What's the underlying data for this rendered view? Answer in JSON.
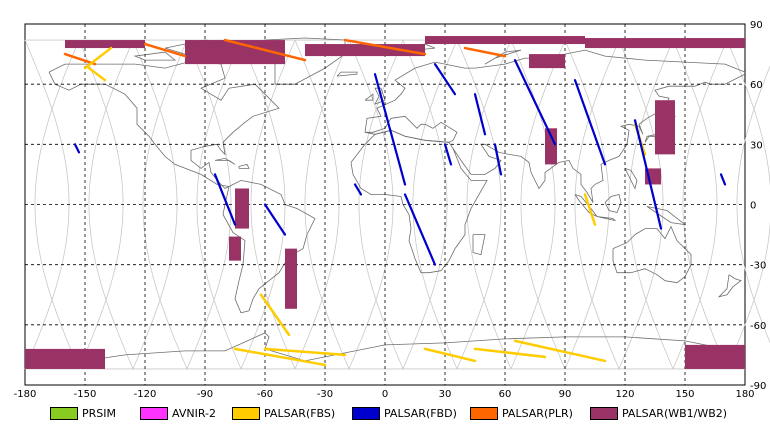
{
  "chart_data": {
    "type": "map",
    "projection": "equirectangular",
    "xlim": [
      -180,
      180
    ],
    "ylim": [
      -90,
      90
    ],
    "x_ticks": [
      "-180",
      "-150",
      "-120",
      "-90",
      "-60",
      "-30",
      "0",
      "30",
      "60",
      "90",
      "120",
      "150",
      "180"
    ],
    "y_ticks": [
      "90",
      "60",
      "30",
      "0",
      "-30",
      "-60",
      "-90"
    ],
    "grid": "dashed every 30 degrees",
    "legend": [
      {
        "name": "PRSIM",
        "color": "#88cc22"
      },
      {
        "name": "AVNIR-2",
        "color": "#ff33ff"
      },
      {
        "name": "PALSAR(FBS)",
        "color": "#ffcc00"
      },
      {
        "name": "PALSAR(FBD)",
        "color": "#0000cc"
      },
      {
        "name": "PALSAR(PLR)",
        "color": "#ff6600"
      },
      {
        "name": "PALSAR(WB1/WB2)",
        "color": "#993366"
      }
    ],
    "wb_swaths": [
      {
        "lon": [
          -160,
          -120
        ],
        "lat": [
          78,
          82
        ]
      },
      {
        "lon": [
          -100,
          -50
        ],
        "lat": [
          70,
          82
        ]
      },
      {
        "lon": [
          -40,
          20
        ],
        "lat": [
          74,
          80
        ]
      },
      {
        "lon": [
          20,
          100
        ],
        "lat": [
          80,
          84
        ]
      },
      {
        "lon": [
          100,
          180
        ],
        "lat": [
          78,
          83
        ]
      },
      {
        "lon": [
          72,
          90
        ],
        "lat": [
          68,
          75
        ]
      },
      {
        "lon": [
          80,
          86
        ],
        "lat": [
          20,
          38
        ]
      },
      {
        "lon": [
          135,
          145
        ],
        "lat": [
          25,
          52
        ]
      },
      {
        "lon": [
          130,
          138
        ],
        "lat": [
          10,
          18
        ]
      },
      {
        "lon": [
          -75,
          -68
        ],
        "lat": [
          -12,
          8
        ]
      },
      {
        "lon": [
          -78,
          -72
        ],
        "lat": [
          -28,
          -16
        ]
      },
      {
        "lon": [
          -50,
          -44
        ],
        "lat": [
          -52,
          -22
        ]
      },
      {
        "lon": [
          -180,
          -140
        ],
        "lat": [
          -82,
          -72
        ]
      },
      {
        "lon": [
          150,
          180
        ],
        "lat": [
          -82,
          -70
        ]
      }
    ],
    "fbd_swaths": [
      {
        "from": [
          -5,
          65
        ],
        "to": [
          10,
          10
        ]
      },
      {
        "from": [
          25,
          70
        ],
        "to": [
          35,
          55
        ]
      },
      {
        "from": [
          65,
          72
        ],
        "to": [
          85,
          30
        ]
      },
      {
        "from": [
          95,
          62
        ],
        "to": [
          110,
          20
        ]
      },
      {
        "from": [
          10,
          5
        ],
        "to": [
          25,
          -30
        ]
      },
      {
        "from": [
          -85,
          15
        ],
        "to": [
          -75,
          -10
        ]
      },
      {
        "from": [
          -60,
          0
        ],
        "to": [
          -50,
          -15
        ]
      },
      {
        "from": [
          45,
          55
        ],
        "to": [
          50,
          35
        ]
      },
      {
        "from": [
          125,
          42
        ],
        "to": [
          138,
          -12
        ]
      },
      {
        "from": [
          -155,
          30
        ],
        "to": [
          -153,
          26
        ]
      },
      {
        "from": [
          30,
          30
        ],
        "to": [
          33,
          20
        ]
      },
      {
        "from": [
          55,
          30
        ],
        "to": [
          58,
          15
        ]
      },
      {
        "from": [
          -15,
          10
        ],
        "to": [
          -12,
          5
        ]
      },
      {
        "from": [
          168,
          15
        ],
        "to": [
          170,
          10
        ]
      }
    ],
    "fbs_swaths": [
      {
        "from": [
          -150,
          68
        ],
        "to": [
          -137,
          78
        ]
      },
      {
        "from": [
          -148,
          68
        ],
        "to": [
          -140,
          62
        ]
      },
      {
        "from": [
          -62,
          -45
        ],
        "to": [
          -48,
          -65
        ]
      },
      {
        "from": [
          -75,
          -72
        ],
        "to": [
          -30,
          -80
        ]
      },
      {
        "from": [
          -60,
          -72
        ],
        "to": [
          -20,
          -75
        ]
      },
      {
        "from": [
          20,
          -72
        ],
        "to": [
          45,
          -78
        ]
      },
      {
        "from": [
          65,
          -68
        ],
        "to": [
          110,
          -78
        ]
      },
      {
        "from": [
          45,
          -72
        ],
        "to": [
          80,
          -76
        ]
      },
      {
        "from": [
          125,
          40
        ],
        "to": [
          130,
          25
        ]
      },
      {
        "from": [
          100,
          5
        ],
        "to": [
          105,
          -10
        ]
      }
    ],
    "plr_swaths": [
      {
        "from": [
          -160,
          75
        ],
        "to": [
          -145,
          70
        ]
      },
      {
        "from": [
          -80,
          82
        ],
        "to": [
          -40,
          72
        ]
      },
      {
        "from": [
          -20,
          82
        ],
        "to": [
          20,
          75
        ]
      },
      {
        "from": [
          40,
          78
        ],
        "to": [
          60,
          74
        ]
      },
      {
        "from": [
          -120,
          80
        ],
        "to": [
          -100,
          74
        ]
      }
    ]
  }
}
